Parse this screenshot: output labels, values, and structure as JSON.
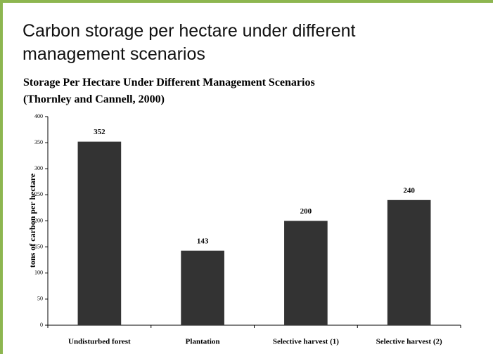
{
  "chart_data": {
    "type": "bar",
    "title": "Carbon storage per hectare under different management scenarios",
    "subtitle": "Storage Per Hectare Under Different Management Scenarios (Thornley and Cannell, 2000)",
    "y_label": "tons of carbon per hectare",
    "categories": [
      "Undisturbed forest",
      "Plantation",
      "Selective harvest (1)",
      "Selective harvest (2)"
    ],
    "values": [
      352,
      143,
      200,
      240
    ],
    "color": "#333333",
    "ylim": [
      0,
      400
    ],
    "yticks": [
      0,
      50,
      100,
      150,
      200,
      250,
      300,
      350,
      400
    ],
    "grid": false
  }
}
